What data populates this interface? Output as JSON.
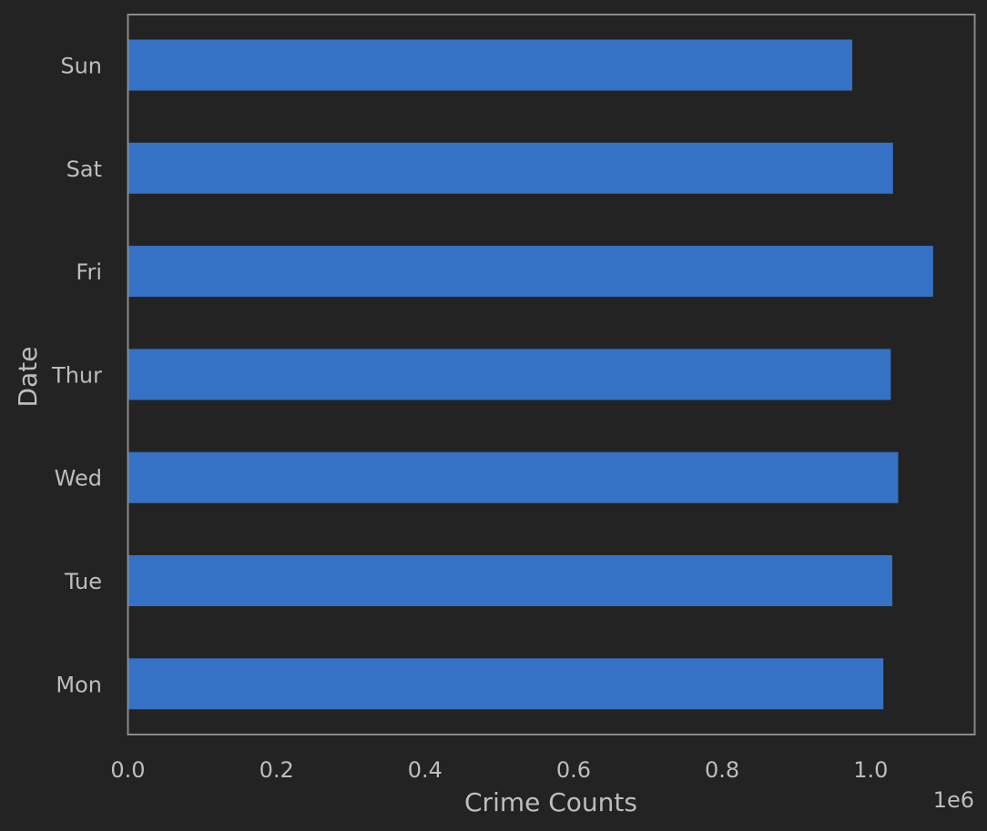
{
  "colors": {
    "background": "#232323",
    "bar": "#3572c6",
    "frame": "#8a8a8a",
    "text": "#bdbdbd"
  },
  "chart_data": {
    "type": "bar",
    "orientation": "horizontal",
    "categories": [
      "Mon",
      "Tue",
      "Wed",
      "Thur",
      "Fri",
      "Sat",
      "Sun"
    ],
    "values": [
      1017000,
      1029000,
      1037000,
      1027000,
      1084000,
      1030000,
      975000
    ],
    "title": "",
    "xlabel": "Crime Counts",
    "ylabel": "Date",
    "xlim": [
      0,
      1140000
    ],
    "x_ticks": [
      0,
      200000,
      400000,
      600000,
      800000,
      1000000
    ],
    "x_tick_labels": [
      "0.0",
      "0.2",
      "0.4",
      "0.6",
      "0.8",
      "1.0"
    ],
    "x_offset_label": "1e6",
    "grid": false,
    "legend": "none"
  }
}
